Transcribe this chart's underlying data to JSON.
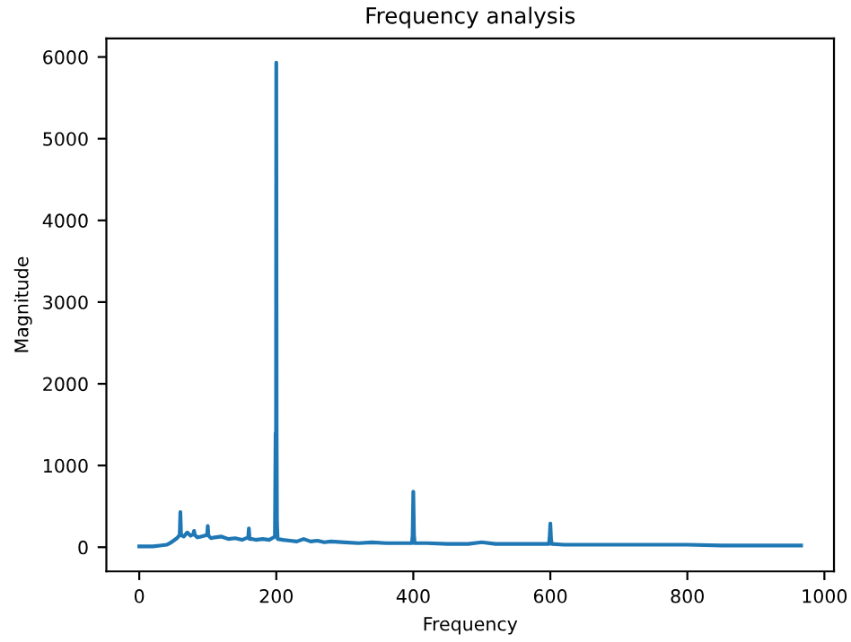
{
  "chart_data": {
    "type": "line",
    "title": "Frequency analysis",
    "xlabel": "Frequency",
    "ylabel": "Magnitude",
    "color": "#1f77b4",
    "x": [
      0,
      10,
      20,
      30,
      40,
      45,
      50,
      55,
      59,
      60,
      61,
      65,
      70,
      75,
      79,
      80,
      81,
      85,
      90,
      95,
      99,
      100,
      101,
      105,
      110,
      120,
      130,
      140,
      150,
      159,
      160,
      161,
      165,
      170,
      180,
      190,
      198,
      199,
      199.5,
      200,
      200.5,
      201,
      202,
      210,
      220,
      230,
      240,
      250,
      260,
      270,
      280,
      300,
      320,
      340,
      360,
      380,
      398,
      399,
      400,
      401,
      402,
      420,
      450,
      480,
      500,
      520,
      550,
      580,
      598,
      599,
      600,
      601,
      602,
      620,
      650,
      700,
      750,
      800,
      850,
      900,
      966
    ],
    "values": [
      10,
      10,
      10,
      20,
      30,
      50,
      80,
      110,
      150,
      430,
      150,
      130,
      180,
      140,
      160,
      200,
      150,
      120,
      130,
      140,
      150,
      260,
      140,
      110,
      120,
      130,
      100,
      110,
      90,
      120,
      230,
      100,
      100,
      90,
      100,
      90,
      130,
      1400,
      300,
      5930,
      1400,
      300,
      100,
      90,
      80,
      70,
      100,
      70,
      80,
      60,
      70,
      60,
      50,
      60,
      50,
      50,
      50,
      150,
      680,
      150,
      50,
      50,
      40,
      40,
      60,
      40,
      40,
      40,
      40,
      120,
      290,
      100,
      40,
      30,
      30,
      30,
      30,
      30,
      20,
      20,
      20
    ],
    "xlim": [
      -48,
      1014
    ],
    "ylim": [
      -296,
      6226
    ],
    "xticks": [
      0,
      200,
      400,
      600,
      800,
      1000
    ],
    "yticks": [
      0,
      1000,
      2000,
      3000,
      4000,
      5000,
      6000
    ]
  }
}
